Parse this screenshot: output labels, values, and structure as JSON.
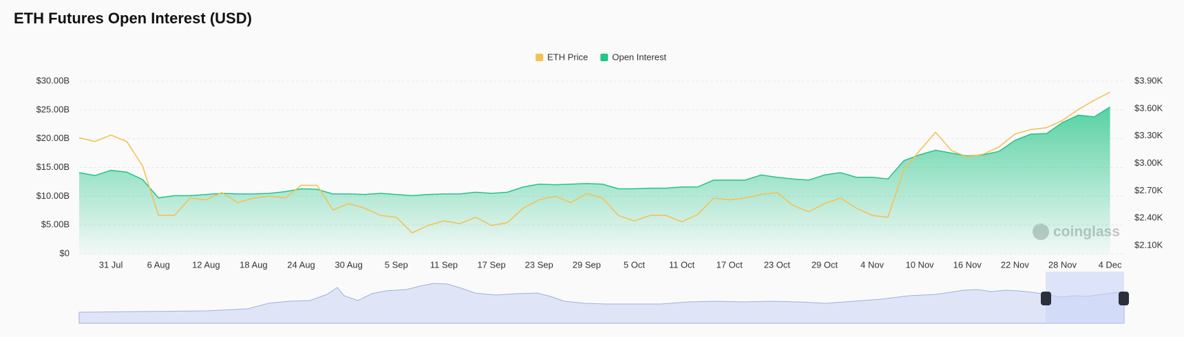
{
  "chart_data": {
    "type": "combo",
    "title": "ETH Futures Open Interest (USD)",
    "watermark": "coinglass",
    "categories": [
      null,
      null,
      "31 Jul",
      null,
      null,
      "6 Aug",
      null,
      null,
      "12 Aug",
      null,
      null,
      "18 Aug",
      null,
      null,
      "24 Aug",
      null,
      null,
      "30 Aug",
      null,
      null,
      "5 Sep",
      null,
      null,
      "11 Sep",
      null,
      null,
      "17 Sep",
      null,
      null,
      "23 Sep",
      null,
      null,
      "29 Sep",
      null,
      null,
      "5 Oct",
      null,
      null,
      "11 Oct",
      null,
      null,
      "17 Oct",
      null,
      null,
      "23 Oct",
      null,
      null,
      "29 Oct",
      null,
      null,
      "4 Nov",
      null,
      null,
      "10 Nov",
      null,
      null,
      "16 Nov",
      null,
      null,
      "22 Nov",
      null,
      null,
      "28 Nov",
      null,
      null,
      "4 Dec"
    ],
    "series": [
      {
        "name": "ETH Price",
        "type": "line",
        "axis": "y2",
        "color": "#f2c255",
        "values": [
          3.28,
          3.24,
          3.31,
          3.24,
          2.97,
          2.43,
          2.43,
          2.62,
          2.6,
          2.68,
          2.57,
          2.62,
          2.64,
          2.62,
          2.76,
          2.76,
          2.49,
          2.56,
          2.51,
          2.43,
          2.41,
          2.24,
          2.32,
          2.37,
          2.34,
          2.41,
          2.32,
          2.35,
          2.51,
          2.6,
          2.64,
          2.57,
          2.67,
          2.62,
          2.43,
          2.37,
          2.43,
          2.43,
          2.36,
          2.44,
          2.62,
          2.6,
          2.62,
          2.66,
          2.68,
          2.54,
          2.47,
          2.56,
          2.62,
          2.51,
          2.43,
          2.41,
          2.93,
          3.14,
          3.34,
          3.14,
          3.07,
          3.1,
          3.18,
          3.32,
          3.37,
          3.39,
          3.47,
          3.59,
          3.69,
          3.78
        ]
      },
      {
        "name": "Open Interest",
        "type": "area",
        "color": "#22c487",
        "values": [
          14.1,
          13.6,
          14.5,
          14.2,
          12.9,
          9.7,
          10.1,
          10.1,
          10.3,
          10.5,
          10.4,
          10.4,
          10.5,
          10.8,
          11.3,
          11.2,
          10.4,
          10.4,
          10.3,
          10.5,
          10.3,
          10.1,
          10.3,
          10.4,
          10.4,
          10.7,
          10.5,
          10.7,
          11.6,
          12.1,
          12.0,
          12.1,
          12.2,
          12.1,
          11.3,
          11.3,
          11.4,
          11.4,
          11.6,
          11.6,
          12.8,
          12.8,
          12.8,
          13.7,
          13.3,
          13.0,
          12.8,
          13.7,
          14.1,
          13.3,
          13.3,
          13.0,
          16.2,
          17.2,
          18.0,
          17.5,
          17.0,
          17.2,
          17.8,
          19.7,
          20.8,
          20.9,
          22.8,
          24.1,
          23.8,
          25.5
        ]
      }
    ],
    "ylim": [
      0,
      30
    ],
    "yticks": [
      {
        "value": 0,
        "label": "$0"
      },
      {
        "value": 5,
        "label": "$5.00B"
      },
      {
        "value": 10,
        "label": "$10.00B"
      },
      {
        "value": 15,
        "label": "$15.00B"
      },
      {
        "value": 20,
        "label": "$20.00B"
      },
      {
        "value": 25,
        "label": "$25.00B"
      },
      {
        "value": 30,
        "label": "$30.00B"
      }
    ],
    "y2lim": [
      2.01,
      3.9
    ],
    "y2ticks": [
      {
        "value": 2.1,
        "label": "$2.10K"
      },
      {
        "value": 2.4,
        "label": "$2.40K"
      },
      {
        "value": 2.7,
        "label": "$2.70K"
      },
      {
        "value": 3.0,
        "label": "$3.00K"
      },
      {
        "value": 3.3,
        "label": "$3.30K"
      },
      {
        "value": 3.6,
        "label": "$3.60K"
      },
      {
        "value": 3.9,
        "label": "$3.90K"
      }
    ],
    "grid": true,
    "legend": "top"
  }
}
